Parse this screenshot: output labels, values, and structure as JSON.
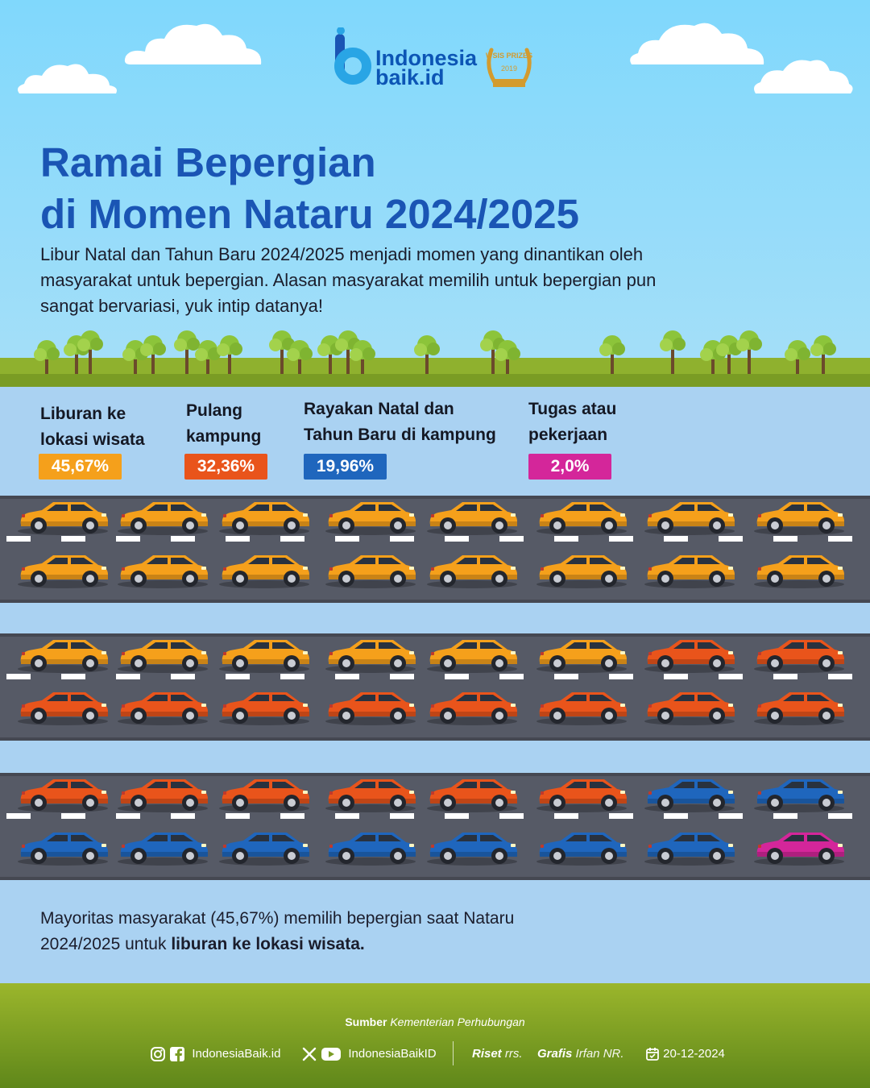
{
  "brand": {
    "line1": "Indonesia",
    "line2": "baik.id",
    "award_text": "WSIS PRIZES"
  },
  "title": {
    "line1": "Ramai Bepergian",
    "line2": "di Momen Nataru 2024/2025"
  },
  "intro": "Libur Natal dan Tahun Baru 2024/2025 menjadi momen yang dinantikan oleh masyarakat untuk bepergian. Alasan masyarakat memilih untuk bepergian pun sangat bervariasi, yuk intip datanya!",
  "chart_data": {
    "type": "pictogram",
    "unit": "car",
    "total_units": 48,
    "categories": [
      "Liburan ke lokasi wisata",
      "Pulang kampung",
      "Rayakan Natal dan Tahun Baru di kampung",
      "Tugas atau pekerjaan"
    ],
    "labels": [
      {
        "line1": "Liburan ke",
        "line2": "lokasi wisata",
        "value_text": "45,67%"
      },
      {
        "line1": "Pulang",
        "line2": "kampung",
        "value_text": "32,36%"
      },
      {
        "line1": "Rayakan Natal dan",
        "line2": "Tahun Baru di kampung",
        "value_text": "19,96%"
      },
      {
        "line1": "Tugas atau",
        "line2": "pekerjaan",
        "value_text": "2,0%"
      }
    ],
    "values": [
      45.67,
      32.36,
      19.96,
      2.0
    ],
    "unit_counts": [
      22,
      16,
      9,
      1
    ],
    "colors": [
      "#f5a01b",
      "#e9541b",
      "#1f66bd",
      "#d4269a"
    ]
  },
  "summary": {
    "text_before": "Mayoritas masyarakat (45,67%) memilih bepergian saat Nataru 2024/2025 untuk ",
    "text_bold": "liburan ke lokasi wisata."
  },
  "footer": {
    "source_label": "Sumber",
    "source_value": "Kementerian Perhubungan",
    "social1": "IndonesiaBaik.id",
    "social2": "IndonesiaBaikID",
    "riset_label": "Riset",
    "riset_value": "rrs.",
    "grafis_label": "Grafis",
    "grafis_value": "Irfan NR.",
    "date": "20-12-2024"
  },
  "icons": [
    "instagram-icon",
    "facebook-icon",
    "x-icon",
    "youtube-icon",
    "calendar-icon",
    "car-icon",
    "cloud-icon",
    "tree-icon"
  ]
}
